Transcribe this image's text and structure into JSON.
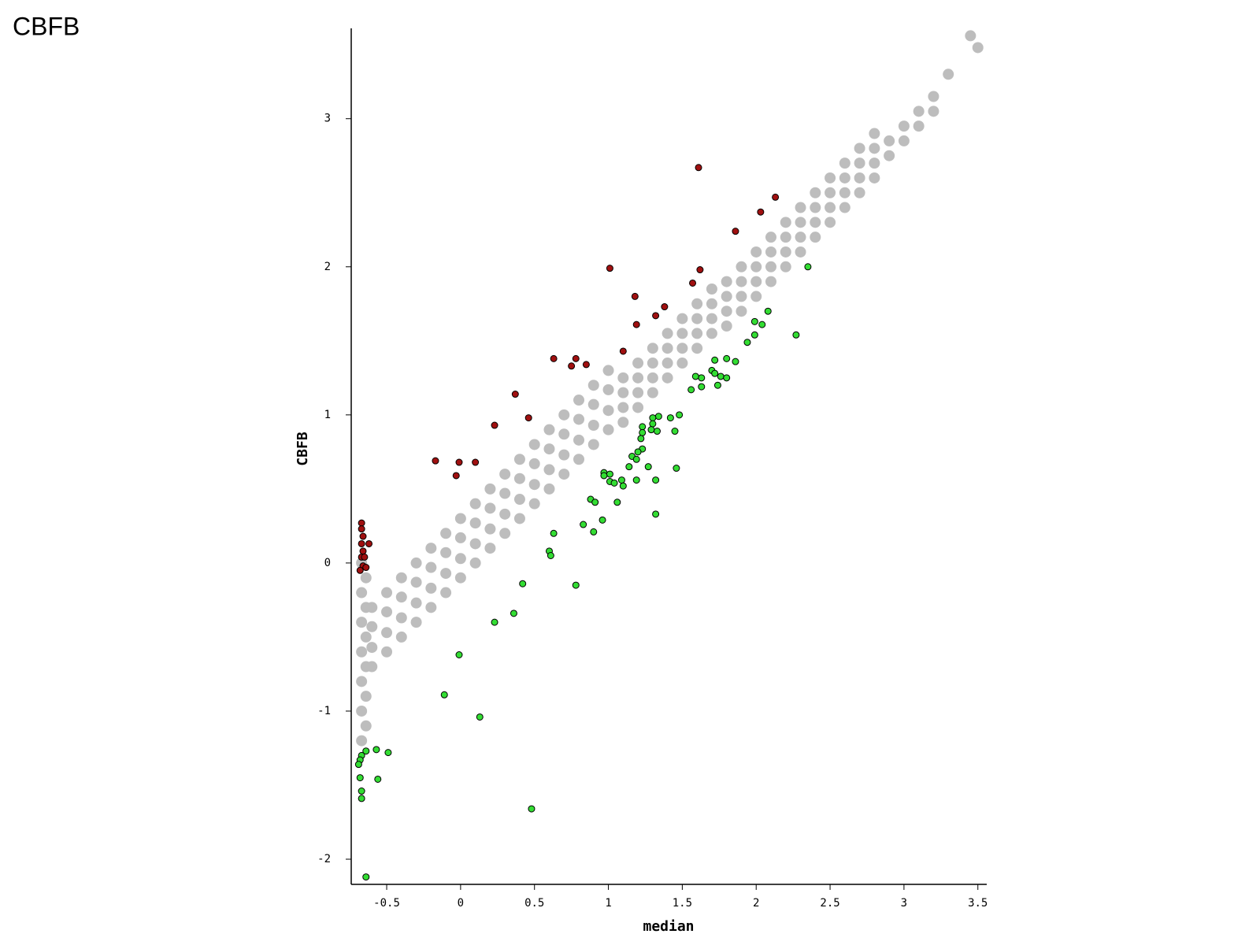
{
  "chart_data": {
    "type": "scatter",
    "title": "CBFB",
    "xlabel": "median",
    "ylabel": "CBFB",
    "xlim": [
      -0.74,
      3.56
    ],
    "ylim": [
      -2.17,
      3.61
    ],
    "xticks": [
      -0.5,
      0,
      0.5,
      1,
      1.5,
      2,
      2.5,
      3,
      3.5
    ],
    "yticks": [
      -2,
      -1,
      0,
      1,
      2,
      3
    ],
    "grid": false,
    "series": [
      {
        "color": "#bdbdbd",
        "x": [
          -0.6,
          -0.6,
          -0.6,
          -0.6,
          -0.5,
          -0.5,
          -0.5,
          -0.5,
          -0.4,
          -0.4,
          -0.4,
          -0.4,
          -0.3,
          -0.3,
          -0.3,
          -0.3,
          -0.2,
          -0.2,
          -0.2,
          -0.2,
          -0.1,
          -0.1,
          -0.1,
          -0.1,
          0,
          0,
          0,
          0,
          0.1,
          0.1,
          0.1,
          0.1,
          0.2,
          0.2,
          0.2,
          0.2,
          0.3,
          0.3,
          0.3,
          0.3,
          0.4,
          0.4,
          0.4,
          0.4,
          0.5,
          0.5,
          0.5,
          0.5,
          0.6,
          0.6,
          0.6,
          0.6,
          0.7,
          0.7,
          0.7,
          0.7,
          0.8,
          0.8,
          0.8,
          0.8,
          0.9,
          0.9,
          0.9,
          0.9,
          1.0,
          1.0,
          1.0,
          1.0,
          1.1,
          1.1,
          1.1,
          1.1,
          1.2,
          1.2,
          1.2,
          1.2,
          1.3,
          1.3,
          1.3,
          1.3,
          1.4,
          1.4,
          1.4,
          1.4,
          1.5,
          1.5,
          1.5,
          1.5,
          1.6,
          1.6,
          1.6,
          1.6,
          1.7,
          1.7,
          1.7,
          1.7,
          1.8,
          1.8,
          1.8,
          1.8,
          1.9,
          1.9,
          1.9,
          1.9,
          2.0,
          2.0,
          2.0,
          2.0,
          2.1,
          2.1,
          2.1,
          2.1,
          2.2,
          2.2,
          2.2,
          2.2,
          2.3,
          2.3,
          2.3,
          2.3,
          2.4,
          2.4,
          2.4,
          2.4,
          2.5,
          2.5,
          2.5,
          2.5,
          2.6,
          2.6,
          2.6,
          2.6,
          2.7,
          2.7,
          2.7,
          2.7,
          2.8,
          2.8,
          2.8,
          2.8,
          2.9,
          2.9,
          3.0,
          3.0,
          3.1,
          3.1,
          3.2,
          3.2,
          3.3,
          3.45,
          3.5,
          -0.67,
          -0.67,
          -0.67,
          -0.67,
          -0.67,
          -0.67,
          -0.67,
          -0.64,
          -0.64,
          -0.64,
          -0.64,
          -0.64,
          -0.64
        ],
        "values": [
          -0.7,
          -0.57,
          -0.43,
          -0.3,
          -0.6,
          -0.47,
          -0.33,
          -0.2,
          -0.5,
          -0.37,
          -0.23,
          -0.1,
          -0.4,
          -0.27,
          -0.13,
          0,
          -0.3,
          -0.17,
          -0.03,
          0.1,
          -0.2,
          -0.07,
          0.07,
          0.2,
          -0.1,
          0.03,
          0.17,
          0.3,
          0,
          0.13,
          0.27,
          0.4,
          0.1,
          0.23,
          0.37,
          0.5,
          0.2,
          0.33,
          0.47,
          0.6,
          0.3,
          0.43,
          0.57,
          0.7,
          0.4,
          0.53,
          0.67,
          0.8,
          0.5,
          0.63,
          0.77,
          0.9,
          0.6,
          0.73,
          0.87,
          1.0,
          0.7,
          0.83,
          0.97,
          1.1,
          0.8,
          0.93,
          1.07,
          1.2,
          0.9,
          1.03,
          1.17,
          1.3,
          0.95,
          1.05,
          1.15,
          1.25,
          1.05,
          1.15,
          1.25,
          1.35,
          1.15,
          1.25,
          1.35,
          1.45,
          1.25,
          1.35,
          1.45,
          1.55,
          1.35,
          1.45,
          1.55,
          1.65,
          1.45,
          1.55,
          1.65,
          1.75,
          1.55,
          1.65,
          1.75,
          1.85,
          1.6,
          1.7,
          1.8,
          1.9,
          1.7,
          1.8,
          1.9,
          2.0,
          1.8,
          1.9,
          2.0,
          2.1,
          1.9,
          2.0,
          2.1,
          2.2,
          2.0,
          2.1,
          2.2,
          2.3,
          2.1,
          2.2,
          2.3,
          2.4,
          2.2,
          2.3,
          2.4,
          2.5,
          2.3,
          2.4,
          2.5,
          2.6,
          2.4,
          2.5,
          2.6,
          2.7,
          2.5,
          2.6,
          2.7,
          2.8,
          2.6,
          2.7,
          2.8,
          2.9,
          2.75,
          2.85,
          2.85,
          2.95,
          2.95,
          3.05,
          3.05,
          3.15,
          3.3,
          3.56,
          3.48,
          -1.2,
          -1.0,
          -0.8,
          -0.6,
          -0.4,
          -0.2,
          0,
          -1.1,
          -0.9,
          -0.7,
          -0.5,
          -0.3,
          -0.1
        ]
      },
      {
        "color": "#a01010",
        "x": [
          1.61,
          2.13,
          2.03,
          1.86,
          1.01,
          1.62,
          1.57,
          1.18,
          1.38,
          1.32,
          1.19,
          1.1,
          0.63,
          0.78,
          0.75,
          0.85,
          0.37,
          0.46,
          0.23,
          -0.17,
          -0.01,
          0.1,
          -0.03,
          -0.67,
          -0.67,
          -0.66,
          -0.67,
          -0.62,
          -0.66,
          -0.67,
          -0.65,
          -0.66,
          -0.64,
          -0.68
        ],
        "values": [
          2.67,
          2.47,
          2.37,
          2.24,
          1.99,
          1.98,
          1.89,
          1.8,
          1.73,
          1.67,
          1.61,
          1.43,
          1.38,
          1.38,
          1.33,
          1.34,
          1.14,
          0.98,
          0.93,
          0.69,
          0.68,
          0.68,
          0.59,
          0.27,
          0.23,
          0.18,
          0.13,
          0.13,
          0.08,
          0.04,
          0.04,
          -0.02,
          -0.03,
          -0.05
        ]
      },
      {
        "color": "#33dd33",
        "x": [
          2.35,
          2.27,
          2.08,
          2.04,
          1.99,
          1.99,
          1.94,
          1.86,
          1.8,
          1.72,
          1.7,
          1.72,
          1.76,
          1.8,
          1.74,
          1.63,
          1.59,
          1.63,
          1.56,
          1.48,
          1.42,
          1.45,
          1.34,
          1.3,
          1.3,
          1.29,
          1.33,
          1.23,
          1.23,
          1.22,
          1.23,
          1.2,
          1.16,
          1.19,
          1.27,
          1.14,
          1.46,
          0.97,
          1.01,
          0.97,
          1.32,
          1.19,
          1.09,
          1.01,
          1.04,
          1.1,
          0.88,
          0.91,
          1.06,
          1.32,
          0.96,
          0.83,
          0.9,
          0.63,
          0.6,
          0.61,
          0.42,
          0.78,
          0.36,
          0.23,
          -0.01,
          -0.11,
          0.13,
          0.48,
          -0.64,
          -0.57,
          -0.49,
          -0.64,
          -0.67,
          -0.68,
          -0.69,
          -0.68,
          -0.56,
          -0.67,
          -0.67
        ],
        "values": [
          2.0,
          1.54,
          1.7,
          1.61,
          1.63,
          1.54,
          1.49,
          1.36,
          1.38,
          1.37,
          1.3,
          1.28,
          1.26,
          1.25,
          1.2,
          1.25,
          1.26,
          1.19,
          1.17,
          1.0,
          0.98,
          0.89,
          0.99,
          0.98,
          0.94,
          0.9,
          0.89,
          0.92,
          0.88,
          0.84,
          0.77,
          0.75,
          0.72,
          0.7,
          0.65,
          0.65,
          0.64,
          0.61,
          0.6,
          0.59,
          0.56,
          0.56,
          0.56,
          0.55,
          0.54,
          0.52,
          0.43,
          0.41,
          0.41,
          0.33,
          0.29,
          0.26,
          0.21,
          0.2,
          0.08,
          0.05,
          -0.14,
          -0.15,
          -0.34,
          -0.4,
          -0.62,
          -0.89,
          -1.04,
          -1.66,
          -2.12,
          -1.26,
          -1.28,
          -1.27,
          -1.3,
          -1.33,
          -1.36,
          -1.45,
          -1.46,
          -1.54,
          -1.59
        ]
      }
    ]
  }
}
